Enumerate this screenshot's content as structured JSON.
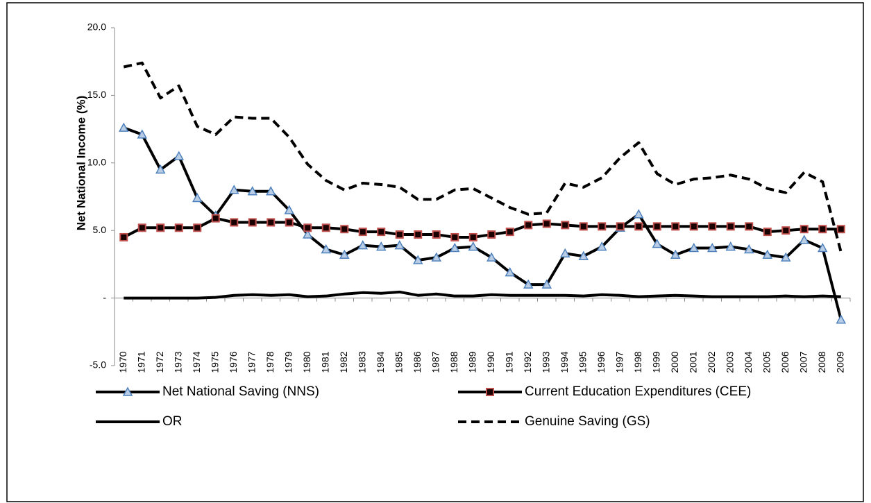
{
  "chart_data": {
    "type": "line",
    "y_label": "Net National Income (%)",
    "categories": [
      "1970",
      "1971",
      "1972",
      "1973",
      "1974",
      "1975",
      "1976",
      "1977",
      "1978",
      "1979",
      "1980",
      "1981",
      "1982",
      "1983",
      "1984",
      "1985",
      "1986",
      "1987",
      "1988",
      "1989",
      "1990",
      "1991",
      "1992",
      "1993",
      "1994",
      "1995",
      "1996",
      "1997",
      "1998",
      "1999",
      "2000",
      "2001",
      "2002",
      "2003",
      "2004",
      "2005",
      "2006",
      "2007",
      "2008",
      "2009"
    ],
    "series": [
      {
        "name": "Net National Saving (NNS)",
        "color": "#000000",
        "marker": "triangle",
        "marker_color": "#4f81bd",
        "values": [
          12.6,
          12.1,
          9.5,
          10.5,
          7.4,
          6.1,
          8.0,
          7.9,
          7.9,
          6.5,
          4.7,
          3.6,
          3.2,
          3.9,
          3.8,
          3.9,
          2.8,
          3.0,
          3.7,
          3.8,
          3.0,
          1.9,
          1.0,
          1.0,
          3.3,
          3.1,
          3.8,
          5.2,
          6.2,
          4.0,
          3.2,
          3.7,
          3.7,
          3.8,
          3.6,
          3.2,
          3.0,
          4.3,
          3.7,
          -1.6
        ]
      },
      {
        "name": "Current Education Expenditures (CEE)",
        "color": "#000000",
        "marker": "square",
        "marker_color": "#c0504d",
        "values": [
          4.5,
          5.2,
          5.2,
          5.2,
          5.2,
          5.9,
          5.6,
          5.6,
          5.6,
          5.6,
          5.2,
          5.2,
          5.1,
          4.9,
          4.9,
          4.7,
          4.7,
          4.7,
          4.5,
          4.5,
          4.7,
          4.9,
          5.4,
          5.5,
          5.4,
          5.3,
          5.3,
          5.3,
          5.3,
          5.3,
          5.3,
          5.3,
          5.3,
          5.3,
          5.3,
          4.9,
          5.0,
          5.1,
          5.1,
          5.1
        ]
      },
      {
        "name": "OR",
        "color": "#000000",
        "values": [
          0,
          0,
          0,
          0,
          0,
          0.05,
          0.2,
          0.25,
          0.2,
          0.25,
          0.1,
          0.15,
          0.3,
          0.4,
          0.35,
          0.45,
          0.2,
          0.3,
          0.15,
          0.15,
          0.25,
          0.2,
          0.2,
          0.2,
          0.2,
          0.15,
          0.25,
          0.2,
          0.1,
          0.15,
          0.2,
          0.15,
          0.1,
          0.1,
          0.1,
          0.1,
          0.15,
          0.1,
          0.15,
          0.1
        ]
      },
      {
        "name": "Genuine Saving (GS)",
        "color": "#000000",
        "dash": true,
        "values": [
          17.1,
          17.4,
          14.8,
          15.7,
          12.7,
          12.1,
          13.4,
          13.3,
          13.3,
          11.9,
          9.9,
          8.7,
          8.0,
          8.5,
          8.4,
          8.2,
          7.3,
          7.3,
          8.0,
          8.1,
          7.4,
          6.7,
          6.2,
          6.3,
          8.5,
          8.2,
          8.9,
          10.4,
          11.5,
          9.2,
          8.4,
          8.8,
          8.9,
          9.1,
          8.8,
          8.1,
          7.8,
          9.3,
          8.6,
          3.4
        ]
      }
    ],
    "ylim": [
      -5,
      20
    ],
    "yticks": [
      {
        "value": -5,
        "label": "-5.0"
      },
      {
        "value": 0,
        "label": "-"
      },
      {
        "value": 5,
        "label": "5.0"
      },
      {
        "value": 10,
        "label": "10.0"
      },
      {
        "value": 15,
        "label": "15.0"
      },
      {
        "value": 20,
        "label": "20.0"
      }
    ]
  }
}
